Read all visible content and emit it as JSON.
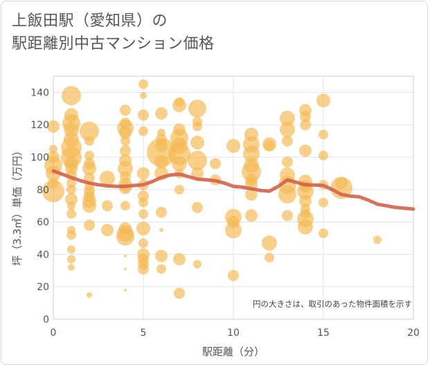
{
  "title": {
    "line1": "上飯田駅（愛知県）の",
    "line2": "駅距離別中古マンション価格"
  },
  "colors": {
    "bubble": "#f5b74e",
    "trend": "#d4624a",
    "grid": "#dfe3e8",
    "axis": "#555555",
    "plot_border": "#cccccc"
  },
  "chart_data": {
    "type": "scatter",
    "xlabel": "駅距離（分）",
    "ylabel": "坪（3.3㎡）単価（万円）",
    "xlim": [
      0,
      20
    ],
    "ylim": [
      0,
      150
    ],
    "x_ticks": [
      0,
      5,
      10,
      15,
      20
    ],
    "y_ticks": [
      0,
      20,
      40,
      60,
      80,
      100,
      120,
      140
    ],
    "grid": true,
    "annotation": "円の大きさは、取引のあった物件面積を示す",
    "trend": {
      "x": [
        0,
        0.5,
        1,
        1.5,
        2,
        2.5,
        3,
        3.5,
        4,
        4.5,
        5,
        5.5,
        6,
        6.5,
        7,
        7.5,
        8,
        8.5,
        9,
        9.5,
        10,
        10.5,
        11,
        11.5,
        12,
        12.5,
        13,
        13.5,
        14,
        14.5,
        15,
        15.5,
        16,
        16.5,
        17,
        17.5,
        18,
        18.5,
        19,
        19.5,
        20
      ],
      "y": [
        91.5,
        89.5,
        87.5,
        85.5,
        84,
        83,
        82.3,
        82,
        82,
        82.5,
        83,
        85,
        87.5,
        89,
        89.5,
        88,
        86.5,
        86,
        85.5,
        84,
        82,
        81.5,
        80.5,
        79.5,
        79,
        82,
        86,
        84.5,
        83,
        82.8,
        82.5,
        80,
        77,
        76,
        75.5,
        73.5,
        71,
        70,
        69,
        68.5,
        68
      ]
    },
    "points": [
      {
        "x": 0,
        "y": 119,
        "s": 9
      },
      {
        "x": 0,
        "y": 105,
        "s": 6
      },
      {
        "x": 0,
        "y": 100,
        "s": 9
      },
      {
        "x": 0,
        "y": 95,
        "s": 13
      },
      {
        "x": 0,
        "y": 90,
        "s": 11
      },
      {
        "x": 0,
        "y": 84,
        "s": 8
      },
      {
        "x": 0,
        "y": 79,
        "s": 16
      },
      {
        "x": 1,
        "y": 138,
        "s": 14
      },
      {
        "x": 1,
        "y": 126,
        "s": 10
      },
      {
        "x": 1,
        "y": 121,
        "s": 13
      },
      {
        "x": 1,
        "y": 117,
        "s": 11
      },
      {
        "x": 1,
        "y": 111,
        "s": 11
      },
      {
        "x": 1,
        "y": 106,
        "s": 15
      },
      {
        "x": 1,
        "y": 100,
        "s": 15
      },
      {
        "x": 1,
        "y": 96,
        "s": 10
      },
      {
        "x": 1,
        "y": 93,
        "s": 9
      },
      {
        "x": 1,
        "y": 89,
        "s": 8
      },
      {
        "x": 1,
        "y": 84,
        "s": 7
      },
      {
        "x": 1,
        "y": 80,
        "s": 7
      },
      {
        "x": 1,
        "y": 74,
        "s": 9
      },
      {
        "x": 1,
        "y": 70,
        "s": 6
      },
      {
        "x": 1,
        "y": 65,
        "s": 7
      },
      {
        "x": 1,
        "y": 55,
        "s": 6
      },
      {
        "x": 1,
        "y": 52,
        "s": 7
      },
      {
        "x": 1,
        "y": 43,
        "s": 6
      },
      {
        "x": 1,
        "y": 37,
        "s": 6
      },
      {
        "x": 1,
        "y": 32,
        "s": 5
      },
      {
        "x": 2,
        "y": 116,
        "s": 14
      },
      {
        "x": 2,
        "y": 110,
        "s": 7
      },
      {
        "x": 2,
        "y": 101,
        "s": 7
      },
      {
        "x": 2,
        "y": 96,
        "s": 8
      },
      {
        "x": 2,
        "y": 93,
        "s": 10
      },
      {
        "x": 2,
        "y": 87,
        "s": 8
      },
      {
        "x": 2,
        "y": 82,
        "s": 7
      },
      {
        "x": 2,
        "y": 79,
        "s": 8
      },
      {
        "x": 2,
        "y": 76,
        "s": 8
      },
      {
        "x": 2,
        "y": 73,
        "s": 10
      },
      {
        "x": 2,
        "y": 70,
        "s": 10
      },
      {
        "x": 2,
        "y": 58,
        "s": 8
      },
      {
        "x": 2,
        "y": 15,
        "s": 4
      },
      {
        "x": 3,
        "y": 87,
        "s": 11
      },
      {
        "x": 3,
        "y": 70,
        "s": 8
      },
      {
        "x": 3,
        "y": 55,
        "s": 9
      },
      {
        "x": 4,
        "y": 129,
        "s": 8
      },
      {
        "x": 4,
        "y": 121,
        "s": 8
      },
      {
        "x": 4,
        "y": 118,
        "s": 12
      },
      {
        "x": 4,
        "y": 115,
        "s": 9
      },
      {
        "x": 4,
        "y": 110,
        "s": 7
      },
      {
        "x": 4,
        "y": 104,
        "s": 8
      },
      {
        "x": 4,
        "y": 98,
        "s": 9
      },
      {
        "x": 4,
        "y": 93,
        "s": 11
      },
      {
        "x": 4,
        "y": 88,
        "s": 8
      },
      {
        "x": 4,
        "y": 83,
        "s": 10
      },
      {
        "x": 4,
        "y": 81,
        "s": 9
      },
      {
        "x": 4,
        "y": 70,
        "s": 7
      },
      {
        "x": 4,
        "y": 56,
        "s": 9
      },
      {
        "x": 4,
        "y": 53,
        "s": 12
      },
      {
        "x": 4,
        "y": 51,
        "s": 13
      },
      {
        "x": 4,
        "y": 39,
        "s": 2
      },
      {
        "x": 4,
        "y": 31,
        "s": 2
      },
      {
        "x": 4,
        "y": 18,
        "s": 2
      },
      {
        "x": 5,
        "y": 145,
        "s": 7
      },
      {
        "x": 5,
        "y": 138,
        "s": 5
      },
      {
        "x": 5,
        "y": 126,
        "s": 8
      },
      {
        "x": 5,
        "y": 116,
        "s": 7
      },
      {
        "x": 5,
        "y": 90,
        "s": 9
      },
      {
        "x": 5,
        "y": 83,
        "s": 8
      },
      {
        "x": 5,
        "y": 76,
        "s": 8
      },
      {
        "x": 5,
        "y": 72,
        "s": 7
      },
      {
        "x": 5,
        "y": 65,
        "s": 7
      },
      {
        "x": 5,
        "y": 56,
        "s": 10
      },
      {
        "x": 5,
        "y": 47,
        "s": 7
      },
      {
        "x": 5,
        "y": 40,
        "s": 9
      },
      {
        "x": 5,
        "y": 37,
        "s": 8
      },
      {
        "x": 5,
        "y": 34,
        "s": 8
      },
      {
        "x": 5,
        "y": 31,
        "s": 8
      },
      {
        "x": 6,
        "y": 127,
        "s": 9
      },
      {
        "x": 6,
        "y": 115,
        "s": 6
      },
      {
        "x": 6,
        "y": 111,
        "s": 8
      },
      {
        "x": 6,
        "y": 107,
        "s": 9
      },
      {
        "x": 6,
        "y": 103,
        "s": 21
      },
      {
        "x": 6,
        "y": 97,
        "s": 10
      },
      {
        "x": 6,
        "y": 90,
        "s": 10
      },
      {
        "x": 6,
        "y": 66,
        "s": 8
      },
      {
        "x": 6,
        "y": 55,
        "s": 3
      },
      {
        "x": 6,
        "y": 39,
        "s": 9
      },
      {
        "x": 6,
        "y": 31,
        "s": 7
      },
      {
        "x": 7,
        "y": 134,
        "s": 7
      },
      {
        "x": 7,
        "y": 132,
        "s": 10
      },
      {
        "x": 7,
        "y": 117,
        "s": 9
      },
      {
        "x": 7,
        "y": 112,
        "s": 13
      },
      {
        "x": 7,
        "y": 107,
        "s": 12
      },
      {
        "x": 7,
        "y": 102,
        "s": 16
      },
      {
        "x": 7,
        "y": 96,
        "s": 11
      },
      {
        "x": 7,
        "y": 90,
        "s": 7
      },
      {
        "x": 7,
        "y": 80,
        "s": 7
      },
      {
        "x": 7,
        "y": 37,
        "s": 9
      },
      {
        "x": 7,
        "y": 16,
        "s": 8
      },
      {
        "x": 8,
        "y": 130,
        "s": 13
      },
      {
        "x": 8,
        "y": 122,
        "s": 7
      },
      {
        "x": 8,
        "y": 119,
        "s": 7
      },
      {
        "x": 8,
        "y": 109,
        "s": 10
      },
      {
        "x": 8,
        "y": 98,
        "s": 14
      },
      {
        "x": 8,
        "y": 90,
        "s": 9
      },
      {
        "x": 8,
        "y": 69,
        "s": 8
      },
      {
        "x": 8,
        "y": 34,
        "s": 6
      },
      {
        "x": 9,
        "y": 96,
        "s": 8
      },
      {
        "x": 9,
        "y": 86,
        "s": 8
      },
      {
        "x": 10,
        "y": 107,
        "s": 10
      },
      {
        "x": 10,
        "y": 63,
        "s": 12
      },
      {
        "x": 10,
        "y": 60,
        "s": 9
      },
      {
        "x": 10,
        "y": 55,
        "s": 12
      },
      {
        "x": 10,
        "y": 27,
        "s": 8
      },
      {
        "x": 11,
        "y": 114,
        "s": 10
      },
      {
        "x": 11,
        "y": 108,
        "s": 12
      },
      {
        "x": 11,
        "y": 102,
        "s": 12
      },
      {
        "x": 11,
        "y": 95,
        "s": 11
      },
      {
        "x": 11,
        "y": 91,
        "s": 14
      },
      {
        "x": 11,
        "y": 86,
        "s": 9
      },
      {
        "x": 11,
        "y": 83,
        "s": 9
      },
      {
        "x": 11,
        "y": 77,
        "s": 9
      },
      {
        "x": 11,
        "y": 64,
        "s": 9
      },
      {
        "x": 12,
        "y": 108,
        "s": 10
      },
      {
        "x": 12,
        "y": 107,
        "s": 8
      },
      {
        "x": 12,
        "y": 47,
        "s": 11
      },
      {
        "x": 12,
        "y": 38,
        "s": 7
      },
      {
        "x": 13,
        "y": 124,
        "s": 11
      },
      {
        "x": 13,
        "y": 117,
        "s": 11
      },
      {
        "x": 13,
        "y": 110,
        "s": 8
      },
      {
        "x": 13,
        "y": 97,
        "s": 8
      },
      {
        "x": 13,
        "y": 89,
        "s": 11
      },
      {
        "x": 13,
        "y": 83,
        "s": 13
      },
      {
        "x": 13,
        "y": 77,
        "s": 13
      },
      {
        "x": 13,
        "y": 64,
        "s": 8
      },
      {
        "x": 14,
        "y": 129,
        "s": 9
      },
      {
        "x": 14,
        "y": 125,
        "s": 8
      },
      {
        "x": 14,
        "y": 120,
        "s": 8
      },
      {
        "x": 14,
        "y": 104,
        "s": 9
      },
      {
        "x": 14,
        "y": 85,
        "s": 10
      },
      {
        "x": 14,
        "y": 82,
        "s": 9
      },
      {
        "x": 14,
        "y": 79,
        "s": 12
      },
      {
        "x": 14,
        "y": 73,
        "s": 9
      },
      {
        "x": 14,
        "y": 68,
        "s": 7
      },
      {
        "x": 14,
        "y": 65,
        "s": 7
      },
      {
        "x": 14,
        "y": 62,
        "s": 12
      },
      {
        "x": 14,
        "y": 57,
        "s": 11
      },
      {
        "x": 15,
        "y": 135,
        "s": 10
      },
      {
        "x": 15,
        "y": 114,
        "s": 7
      },
      {
        "x": 15,
        "y": 101,
        "s": 7
      },
      {
        "x": 15,
        "y": 83,
        "s": 7
      },
      {
        "x": 15,
        "y": 72,
        "s": 7
      },
      {
        "x": 15,
        "y": 53,
        "s": 7
      },
      {
        "x": 16,
        "y": 84,
        "s": 9
      },
      {
        "x": 16,
        "y": 81,
        "s": 16
      },
      {
        "x": 18,
        "y": 49,
        "s": 6
      }
    ]
  }
}
